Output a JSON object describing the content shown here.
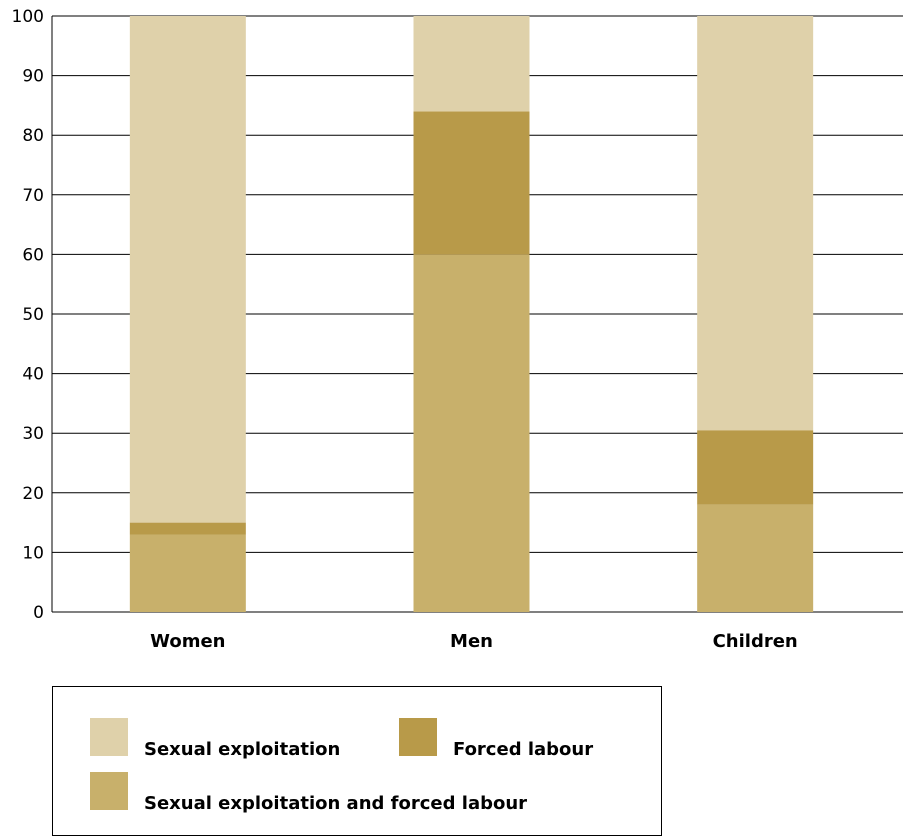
{
  "chart_data": {
    "type": "bar",
    "stacked": true,
    "categories": [
      "Women",
      "Men",
      "Children"
    ],
    "series": [
      {
        "name": "Sexual exploitation and  forced labour",
        "values": [
          13,
          60,
          18
        ],
        "color": "#c8b06b"
      },
      {
        "name": "Forced labour",
        "values": [
          2,
          24,
          12.5
        ],
        "color": "#b89a49"
      },
      {
        "name": "Sexual exploitation",
        "values": [
          85,
          16,
          69.5
        ],
        "color": "#dfd1aa"
      }
    ],
    "title": "",
    "xlabel": "",
    "ylabel": "",
    "ylim": [
      0,
      100
    ],
    "yticks": [
      0,
      10,
      20,
      30,
      40,
      50,
      60,
      70,
      80,
      90,
      100
    ],
    "grid": true,
    "legend": {
      "position": "bottom-left",
      "entries": [
        {
          "label": "Sexual exploitation",
          "color": "#dfd1aa"
        },
        {
          "label": "Forced labour",
          "color": "#b89a49"
        },
        {
          "label": "Sexual exploitation and  forced labour",
          "color": "#c8b06b"
        }
      ]
    }
  }
}
